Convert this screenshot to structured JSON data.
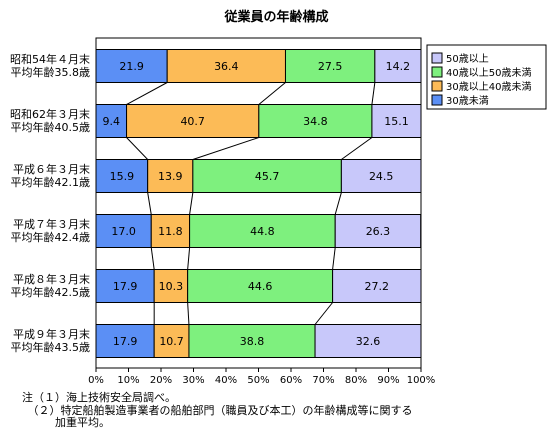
{
  "chart_data": {
    "type": "bar",
    "stacked": true,
    "orientation": "horizontal",
    "percent_axis": true,
    "title": "従業員の年齢構成",
    "categories": [
      [
        "昭和54年４月末",
        "平均年齢35.8歳"
      ],
      [
        "昭和62年３月末",
        "平均年齢40.5歳"
      ],
      [
        "平成６年３月末",
        "平均年齢42.1歳"
      ],
      [
        "平成７年３月末",
        "平均年齢42.4歳"
      ],
      [
        "平成８年３月末",
        "平均年齢42.5歳"
      ],
      [
        "平成９年３月末",
        "平均年齢43.5歳"
      ]
    ],
    "series": [
      {
        "name": "30歳未満",
        "color": "#5b8ff5",
        "values": [
          21.9,
          9.4,
          15.9,
          17.0,
          17.9,
          17.9
        ],
        "labels": [
          "21.9",
          "9.4",
          "15.9",
          "17.0",
          "17.9",
          "17.9"
        ]
      },
      {
        "name": "30歳以上40歳未満",
        "color": "#fcbb57",
        "values": [
          36.4,
          40.7,
          13.9,
          11.8,
          10.3,
          10.7
        ],
        "labels": [
          "36.4",
          "40.7",
          "13.9",
          "11.8",
          "10.3",
          "10.7"
        ]
      },
      {
        "name": "40歳以上50歳未満",
        "color": "#7ef07e",
        "values": [
          27.5,
          34.8,
          45.7,
          44.8,
          44.6,
          38.8
        ],
        "labels": [
          "27.5",
          "34.8",
          "45.7",
          "44.8",
          "44.6",
          "38.8"
        ]
      },
      {
        "name": "50歳以上",
        "color": "#c8c8fa",
        "values": [
          14.2,
          15.1,
          24.5,
          26.3,
          27.2,
          32.6
        ],
        "labels": [
          "14.2",
          "15.1",
          "24.5",
          "26.3",
          "27.2",
          "32.6"
        ]
      }
    ],
    "legend_order": [
      "50歳以上",
      "40歳以上50歳未満",
      "30歳以上40歳未満",
      "30歳未満"
    ],
    "legend_position": "top-right",
    "xlim": [
      0,
      100
    ],
    "xticks": [
      "0%",
      "10%",
      "20%",
      "30%",
      "40%",
      "50%",
      "60%",
      "70%",
      "80%",
      "90%",
      "100%"
    ],
    "connector_lines": true,
    "grid": false
  },
  "notes": {
    "line1": "注（１）海上技術安全局調べ。",
    "line2": "　（２）特定船舶製造事業者の船舶部門（職員及び本工）の年齢構成等に関する",
    "line3": "　　　加重平均。"
  }
}
